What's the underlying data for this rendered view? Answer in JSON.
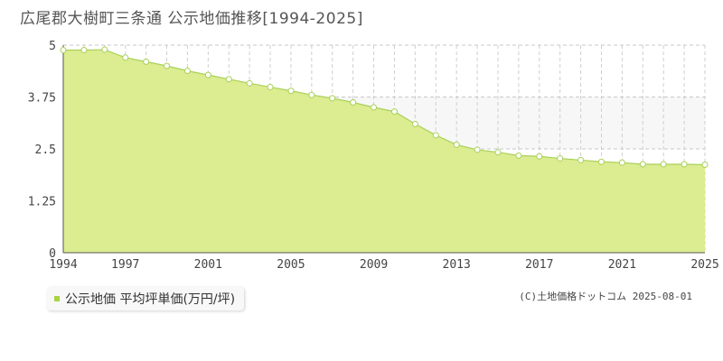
{
  "title": "広尾郡大樹町三条通 公示地価推移[1994-2025]",
  "legend_label": "公示地価 平均坪単価(万円/坪)",
  "copyright": "(C)土地価格ドットコム 2025-08-01",
  "colors": {
    "fill": "#dcec91",
    "line": "#a9d158",
    "marker_stroke": "#a9d158",
    "marker_fill": "#ffffff",
    "legend_swatch": "#a8d444"
  },
  "chart_data": {
    "type": "area",
    "x": [
      1994,
      1995,
      1996,
      1997,
      1998,
      1999,
      2000,
      2001,
      2002,
      2003,
      2004,
      2005,
      2006,
      2007,
      2008,
      2009,
      2010,
      2011,
      2012,
      2013,
      2014,
      2015,
      2016,
      2017,
      2018,
      2019,
      2020,
      2021,
      2022,
      2023,
      2024,
      2025
    ],
    "series": [
      {
        "values": [
          4.88,
          4.88,
          4.89,
          4.7,
          4.6,
          4.5,
          4.38,
          4.28,
          4.18,
          4.08,
          3.99,
          3.9,
          3.8,
          3.72,
          3.62,
          3.5,
          3.4,
          3.1,
          2.83,
          2.6,
          2.48,
          2.42,
          2.34,
          2.32,
          2.27,
          2.23,
          2.19,
          2.17,
          2.13,
          2.13,
          2.13,
          2.12
        ]
      }
    ],
    "ylim": [
      0,
      5
    ],
    "yticks": [
      "0",
      "1.25",
      "2.5",
      "3.75",
      "5"
    ],
    "xtick_labels": [
      "1994",
      "1997",
      "2001",
      "2005",
      "2009",
      "2013",
      "2017",
      "2021",
      "2025"
    ],
    "grid": true
  }
}
